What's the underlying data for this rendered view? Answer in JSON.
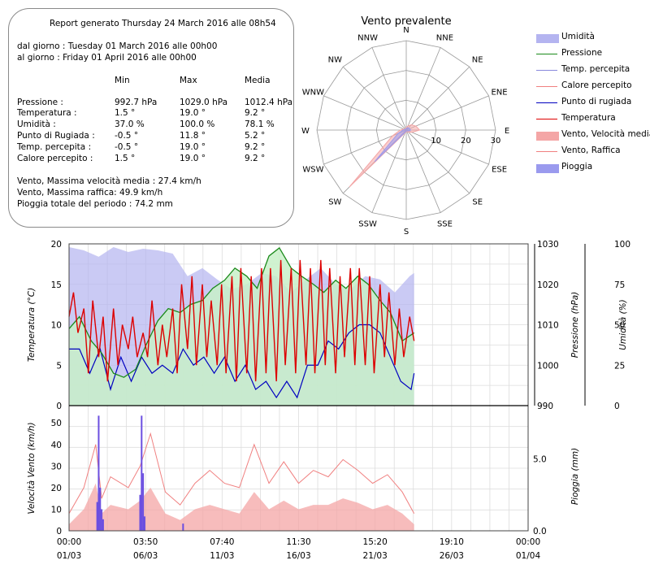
{
  "report": {
    "title": "Report generato Thursday 24 March 2016 alle 08h54",
    "from": "dal giorno : Tuesday 01 March 2016 alle 00h00",
    "to": "al giorno : Friday 01 April 2016 alle 00h00",
    "col_min": "Min",
    "col_max": "Max",
    "col_avg": "Media",
    "rows": [
      {
        "label": "Pressione :",
        "min": "992.7 hPa",
        "max": "1029.0 hPa",
        "avg": "1012.4 hPa"
      },
      {
        "label": "Temperatura :",
        "min": "1.5 °",
        "max": "19.0 °",
        "avg": "9.2 °"
      },
      {
        "label": "Umidità :",
        "min": "37.0 %",
        "max": "100.0 %",
        "avg": "78.1 %"
      },
      {
        "label": "Punto di Rugiada :",
        "min": "-0.5 °",
        "max": "11.8 °",
        "avg": "5.2 °"
      },
      {
        "label": "Temp. percepita :",
        "min": "-0.5 °",
        "max": "19.0 °",
        "avg": "9.2 °"
      },
      {
        "label": "Calore percepito :",
        "min": "1.5 °",
        "max": "19.0 °",
        "avg": "9.2 °"
      }
    ],
    "wind_avg_max": "Vento, Massima velocità media : 27.4 km/h",
    "gust_max": "Vento, Massima raffica: 49.9 km/h",
    "rain_total": "Pioggia totale del periodo : 74.2 mm"
  },
  "legend": [
    {
      "label": "Umidità",
      "kind": "area",
      "color": "#b4b4f0"
    },
    {
      "label": "Pressione",
      "kind": "line",
      "color": "#1a8a1a"
    },
    {
      "label": "Temp. percepita",
      "kind": "line",
      "color": "#8888dd"
    },
    {
      "label": "Calore percepito",
      "kind": "line",
      "color": "#f08080"
    },
    {
      "label": "Punto di rugiada",
      "kind": "line",
      "color": "#0000c0"
    },
    {
      "label": "Temperatura",
      "kind": "line",
      "color": "#dd0000"
    },
    {
      "label": "Vento, Velocità media",
      "kind": "area",
      "color": "#f4a6a6"
    },
    {
      "label": "Vento, Raffica",
      "kind": "line",
      "color": "#f08080"
    },
    {
      "label": "Pioggia",
      "kind": "area",
      "color": "#9a9aee"
    }
  ],
  "chart_data": [
    {
      "type": "radar",
      "title": "Vento prevalente",
      "directions": [
        "N",
        "NNE",
        "NE",
        "ENE",
        "E",
        "ESE",
        "SE",
        "SSE",
        "S",
        "SSW",
        "SW",
        "WSW",
        "W",
        "WNW",
        "NW",
        "NNW"
      ],
      "radial_ticks": [
        "10",
        "20",
        "30"
      ],
      "rmax": 30,
      "series": [
        {
          "name": "Vento, Velocità media",
          "color": "#f4a6a6",
          "values": [
            1.0,
            1.5,
            2.5,
            3.5,
            4.5,
            2.0,
            1.0,
            0.5,
            0.5,
            1.0,
            27.0,
            5.0,
            2.0,
            1.0,
            0.5,
            0.5
          ]
        },
        {
          "name": "Pioggia",
          "color": "#9a9aee",
          "values": [
            0.5,
            0.8,
            1.0,
            1.2,
            1.5,
            0.8,
            0.4,
            0.3,
            0.3,
            0.6,
            15.0,
            3.0,
            1.0,
            0.5,
            0.3,
            0.3
          ]
        }
      ]
    },
    {
      "type": "line",
      "x_ticks": [
        {
          "time": "00:00",
          "date": "01/03"
        },
        {
          "time": "03:50",
          "date": "06/03"
        },
        {
          "time": "07:40",
          "date": "11/03"
        },
        {
          "time": "11:30",
          "date": "16/03"
        },
        {
          "time": "15:20",
          "date": "21/03"
        },
        {
          "time": "19:10",
          "date": "26/03"
        },
        {
          "time": "00:00",
          "date": "01/04"
        }
      ],
      "x_range_days": [
        0,
        31
      ],
      "data_end_day": 23.3,
      "temperature_axis": {
        "label": "Temperatura (°C)",
        "ylim": [
          0,
          20
        ],
        "ticks": [
          "0",
          "5",
          "10",
          "15",
          "20"
        ]
      },
      "pressure_axis": {
        "label": "Pressione (hPa)",
        "ylim": [
          990,
          1030
        ],
        "ticks": [
          "990",
          "1000",
          "1010",
          "1020",
          "1030"
        ]
      },
      "humidity_axis": {
        "label": "Umidità (%)",
        "ylim": [
          0,
          100
        ],
        "ticks": [
          "0",
          "25",
          "50",
          "75",
          "100"
        ]
      },
      "series": [
        {
          "name": "Temperatura",
          "color": "#dd0000",
          "axis": "temperature",
          "x": [
            0,
            0.3,
            0.6,
            1.0,
            1.3,
            1.6,
            2.0,
            2.3,
            2.6,
            3.0,
            3.3,
            3.6,
            4.0,
            4.3,
            4.6,
            5.0,
            5.3,
            5.6,
            6.0,
            6.3,
            6.6,
            7.0,
            7.3,
            7.6,
            8.0,
            8.3,
            8.6,
            9.0,
            9.3,
            9.6,
            10.0,
            10.3,
            10.6,
            11.0,
            11.3,
            11.6,
            12.0,
            12.3,
            12.6,
            13.0,
            13.3,
            13.6,
            14.0,
            14.3,
            14.6,
            15.0,
            15.3,
            15.6,
            16.0,
            16.3,
            16.6,
            17.0,
            17.3,
            17.6,
            18.0,
            18.3,
            18.6,
            19.0,
            19.3,
            19.6,
            20.0,
            20.3,
            20.6,
            21.0,
            21.3,
            21.6,
            22.0,
            22.3,
            22.6,
            23.0,
            23.3
          ],
          "y": [
            11,
            14,
            9,
            12,
            4,
            13,
            6,
            11,
            3,
            12,
            5,
            10,
            7,
            11,
            6,
            9,
            6,
            13,
            5,
            10,
            6,
            12,
            4,
            15,
            7,
            16,
            5,
            15,
            6,
            13,
            5,
            15,
            4,
            16,
            3,
            17,
            4,
            16,
            3,
            17,
            4,
            17,
            3,
            18,
            5,
            17,
            4,
            18,
            5,
            17,
            4,
            18,
            5,
            17,
            4,
            16,
            6,
            17,
            5,
            17,
            5,
            16,
            4,
            15,
            6,
            14,
            5,
            12,
            6,
            11,
            8
          ]
        },
        {
          "name": "Pressione",
          "color": "#1a8a1a",
          "axis": "pressure",
          "x": [
            0,
            0.7,
            1.5,
            2.2,
            3.0,
            3.7,
            4.5,
            5.2,
            6.0,
            6.7,
            7.5,
            8.2,
            9.0,
            9.7,
            10.5,
            11.2,
            12.0,
            12.7,
            13.5,
            14.2,
            15.0,
            15.7,
            16.5,
            17.2,
            18.0,
            18.7,
            19.5,
            20.2,
            21.0,
            21.7,
            22.5,
            23.3
          ],
          "y": [
            1009,
            1012,
            1006,
            1003,
            998,
            997,
            999,
            1005,
            1011,
            1014,
            1013,
            1015,
            1016,
            1019,
            1021,
            1024,
            1022,
            1019,
            1027,
            1029,
            1024,
            1022,
            1020,
            1018,
            1021,
            1019,
            1022,
            1020,
            1016,
            1013,
            1006,
            1008
          ]
        },
        {
          "name": "Punto di rugiada",
          "color": "#0000c0",
          "axis": "temperature",
          "x": [
            0,
            0.7,
            1.4,
            2.1,
            2.8,
            3.5,
            4.2,
            4.9,
            5.6,
            6.3,
            7.0,
            7.7,
            8.4,
            9.1,
            9.8,
            10.5,
            11.2,
            11.9,
            12.6,
            13.3,
            14.0,
            14.7,
            15.4,
            16.1,
            16.8,
            17.5,
            18.2,
            18.9,
            19.6,
            20.3,
            21.0,
            21.7,
            22.4,
            23.1,
            23.3
          ],
          "y": [
            7,
            7,
            4,
            7,
            2,
            6,
            3,
            6,
            4,
            5,
            4,
            7,
            5,
            6,
            4,
            6,
            3,
            5,
            2,
            3,
            1,
            3,
            1,
            5,
            5,
            8,
            7,
            9,
            10,
            10,
            9,
            6,
            3,
            2,
            4
          ]
        },
        {
          "name": "Umidità",
          "color": "#b4b4f0",
          "axis": "humidity",
          "style": "area",
          "x": [
            0,
            1,
            2,
            3,
            4,
            5,
            6,
            7,
            8,
            9,
            10,
            11,
            12,
            13,
            14,
            15,
            16,
            17,
            18,
            19,
            20,
            21,
            22,
            23,
            23.3
          ],
          "y": [
            98,
            96,
            92,
            98,
            95,
            97,
            96,
            94,
            80,
            85,
            78,
            72,
            75,
            82,
            80,
            70,
            78,
            85,
            75,
            72,
            80,
            78,
            70,
            80,
            82
          ]
        }
      ]
    },
    {
      "type": "area",
      "x_range_days": [
        0,
        31
      ],
      "wind_axis": {
        "label": "Velocità Vento (km/h)",
        "ylim": [
          0,
          58
        ],
        "ticks": [
          "0",
          "10",
          "20",
          "30",
          "40",
          "50"
        ]
      },
      "rain_axis": {
        "label": "Pioggia (mm)",
        "ylim": [
          0,
          8.7
        ],
        "ticks": [
          "0.0",
          "5.0"
        ]
      },
      "series": [
        {
          "name": "Vento, Raffica",
          "color": "#f08080",
          "axis": "wind",
          "x": [
            0,
            1,
            1.8,
            2.2,
            2.8,
            4.0,
            4.8,
            5.5,
            6.5,
            7.5,
            8.5,
            9.5,
            10.5,
            11.5,
            12.5,
            13.5,
            14.5,
            15.5,
            16.5,
            17.5,
            18.5,
            19.5,
            20.5,
            21.5,
            22.5,
            23.3
          ],
          "y": [
            8,
            20,
            40,
            15,
            25,
            20,
            30,
            45,
            18,
            12,
            22,
            28,
            22,
            20,
            40,
            22,
            32,
            22,
            28,
            25,
            33,
            28,
            22,
            26,
            18,
            8
          ]
        },
        {
          "name": "Vento, Velocità media",
          "color": "#f4a6a6",
          "axis": "wind",
          "x": [
            0,
            1,
            1.8,
            2.2,
            2.8,
            4.0,
            4.8,
            5.5,
            6.5,
            7.5,
            8.5,
            9.5,
            10.5,
            11.5,
            12.5,
            13.5,
            14.5,
            15.5,
            16.5,
            17.5,
            18.5,
            19.5,
            20.5,
            21.5,
            22.5,
            23.3
          ],
          "y": [
            3,
            10,
            22,
            8,
            12,
            10,
            14,
            20,
            8,
            5,
            10,
            12,
            10,
            8,
            18,
            10,
            14,
            10,
            12,
            12,
            15,
            13,
            10,
            12,
            8,
            3
          ]
        },
        {
          "name": "Pioggia",
          "color": "#6b4fe0",
          "axis": "rain",
          "x": [
            1.9,
            2.0,
            2.1,
            2.2,
            2.3,
            4.8,
            4.9,
            5.0,
            5.1,
            7.7
          ],
          "y": [
            2.0,
            8.0,
            3.0,
            1.5,
            0.8,
            2.5,
            8.0,
            4.0,
            1.0,
            0.5
          ]
        }
      ]
    }
  ]
}
